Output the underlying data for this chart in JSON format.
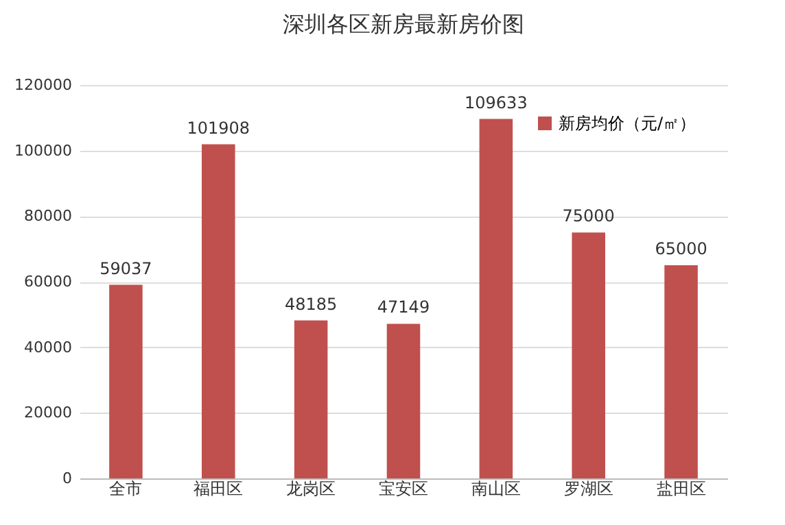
{
  "chart_data": {
    "type": "bar",
    "title": "深圳各区新房最新房价图",
    "categories": [
      "全市",
      "福田区",
      "龙岗区",
      "宝安区",
      "南山区",
      "罗湖区",
      "盐田区"
    ],
    "series": [
      {
        "name": "新房均价（元/㎡）",
        "color": "#c0504d",
        "values": [
          59037,
          101908,
          48185,
          47149,
          109633,
          75000,
          65000
        ]
      }
    ],
    "ylim": [
      0,
      120000
    ],
    "yticks": [
      0,
      20000,
      40000,
      60000,
      80000,
      100000,
      120000
    ],
    "grid": "y",
    "legend": "top right",
    "data_labels": true
  }
}
